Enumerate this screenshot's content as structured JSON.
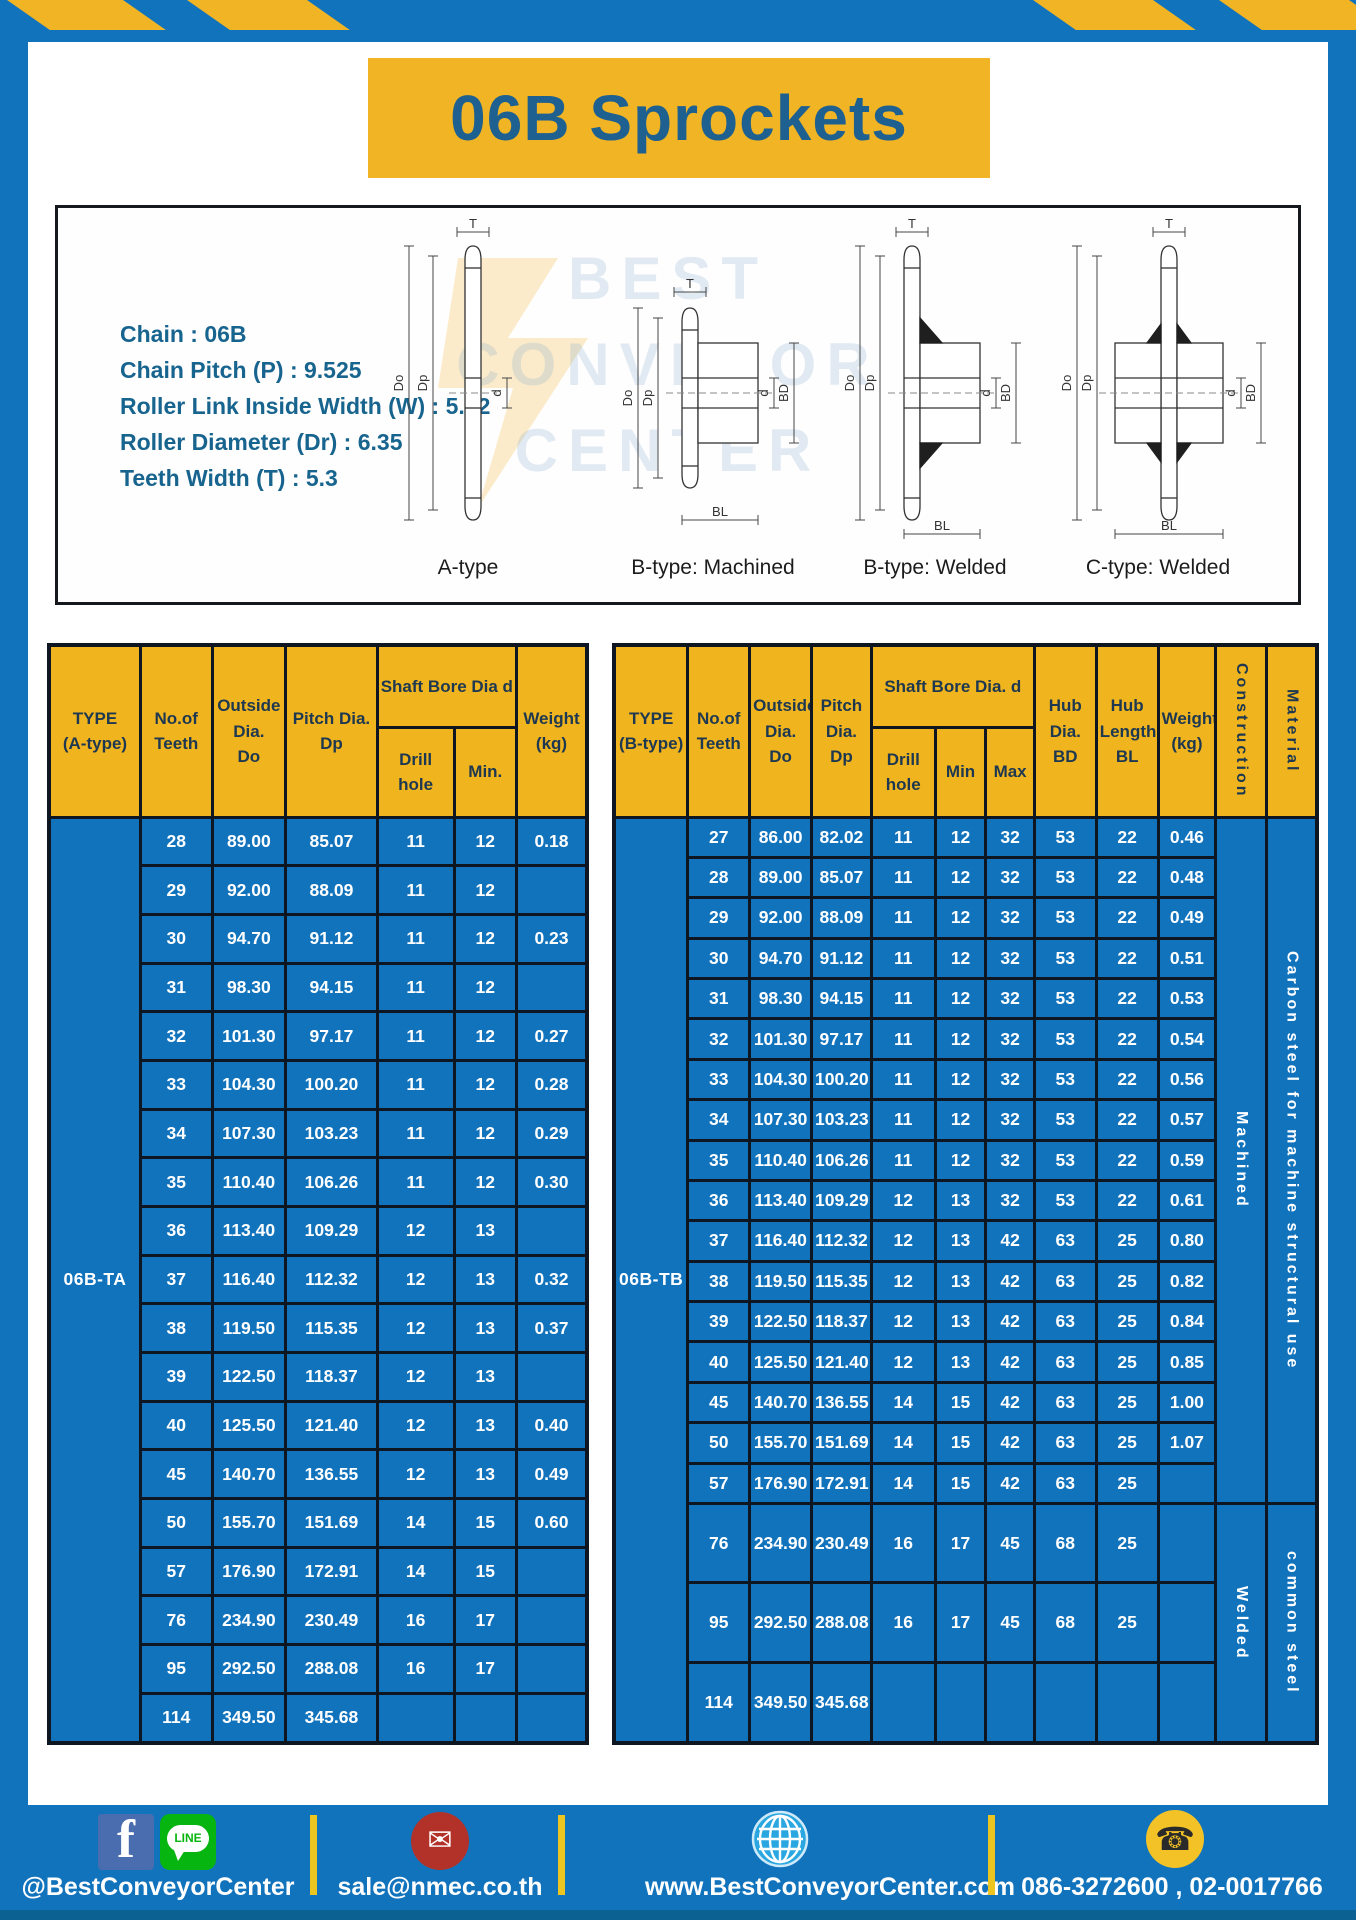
{
  "page": {
    "title_banner": "06B Sprockets"
  },
  "colors": {
    "blue": "#1273bd",
    "yellow": "#f0b425",
    "header_text": "#1d3850",
    "title_text": "#1e6090",
    "cell_text": "#ffffff",
    "footer_strip": "#0b6292"
  },
  "specs": {
    "lines": [
      "Chain : 06B",
      "Chain Pitch (P) : 9.525",
      "Roller Link Inside Width (W) : 5.72",
      "Roller Diameter (Dr) : 6.35",
      "Teeth Width (T) : 5.3"
    ]
  },
  "watermark": {
    "line1": "BEST",
    "line2": "CONVEYOR",
    "line3": "CENTER"
  },
  "drawings": [
    {
      "label": "A-type",
      "variant": "plate",
      "dims": [
        "T",
        "Do",
        "Dp",
        "d"
      ]
    },
    {
      "label": "B-type: Machined",
      "variant": "hubM",
      "dims": [
        "T",
        "Do",
        "Dp",
        "d",
        "BD",
        "BL"
      ]
    },
    {
      "label": "B-type: Welded",
      "variant": "hubW",
      "dims": [
        "T",
        "Do",
        "Dp",
        "d",
        "BD",
        "BL"
      ]
    },
    {
      "label": "C-type: Welded",
      "variant": "hubC",
      "dims": [
        "T",
        "Do",
        "Dp",
        "d",
        "BD",
        "BL"
      ]
    }
  ],
  "table_a": {
    "type_label": "06B-TA",
    "headers": {
      "type": "TYPE\n(A-type)",
      "teeth": "No.of\nTeeth",
      "outside": "Outside\nDia.\nDo",
      "pitch": "Pitch Dia.\nDp",
      "bore_span": "Shaft Bore Dia d",
      "drill": "Drill hole",
      "min": "Min.",
      "weight": "Weight\n(kg)"
    },
    "rows": [
      [
        "28",
        "89.00",
        "85.07",
        "11",
        "12",
        "0.18"
      ],
      [
        "29",
        "92.00",
        "88.09",
        "11",
        "12",
        ""
      ],
      [
        "30",
        "94.70",
        "91.12",
        "11",
        "12",
        "0.23"
      ],
      [
        "31",
        "98.30",
        "94.15",
        "11",
        "12",
        ""
      ],
      [
        "32",
        "101.30",
        "97.17",
        "11",
        "12",
        "0.27"
      ],
      [
        "33",
        "104.30",
        "100.20",
        "11",
        "12",
        "0.28"
      ],
      [
        "34",
        "107.30",
        "103.23",
        "11",
        "12",
        "0.29"
      ],
      [
        "35",
        "110.40",
        "106.26",
        "11",
        "12",
        "0.30"
      ],
      [
        "36",
        "113.40",
        "109.29",
        "12",
        "13",
        ""
      ],
      [
        "37",
        "116.40",
        "112.32",
        "12",
        "13",
        "0.32"
      ],
      [
        "38",
        "119.50",
        "115.35",
        "12",
        "13",
        "0.37"
      ],
      [
        "39",
        "122.50",
        "118.37",
        "12",
        "13",
        ""
      ],
      [
        "40",
        "125.50",
        "121.40",
        "12",
        "13",
        "0.40"
      ],
      [
        "45",
        "140.70",
        "136.55",
        "12",
        "13",
        "0.49"
      ],
      [
        "50",
        "155.70",
        "151.69",
        "14",
        "15",
        "0.60"
      ],
      [
        "57",
        "176.90",
        "172.91",
        "14",
        "15",
        ""
      ],
      [
        "76",
        "234.90",
        "230.49",
        "16",
        "17",
        ""
      ],
      [
        "95",
        "292.50",
        "288.08",
        "16",
        "17",
        ""
      ],
      [
        "114",
        "349.50",
        "345.68",
        "",
        "",
        ""
      ]
    ]
  },
  "table_b": {
    "type_label": "06B-TB",
    "headers": {
      "type": "TYPE\n(B-type)",
      "teeth": "No.of\nTeeth",
      "outside": "Outside\nDia.\nDo",
      "pitch": "Pitch\nDia.\nDp",
      "bore_span": "Shaft Bore Dia. d",
      "drill": "Drill hole",
      "min": "Min",
      "max": "Max",
      "hub_dia": "Hub\nDia.\nBD",
      "hub_len": "Hub\nLength\nBL",
      "weight": "Weight\n(kg)",
      "construction": "Construction",
      "material": "Material"
    },
    "construction_groups": [
      {
        "label": "Machined",
        "span": 17
      },
      {
        "label": "Welded",
        "span": 3
      }
    ],
    "material_groups": [
      {
        "label": "Carbon steel for machine structural use",
        "span": 17
      },
      {
        "label": "common steel",
        "span": 3
      }
    ],
    "rows": [
      [
        "27",
        "86.00",
        "82.02",
        "11",
        "12",
        "32",
        "53",
        "22",
        "0.46"
      ],
      [
        "28",
        "89.00",
        "85.07",
        "11",
        "12",
        "32",
        "53",
        "22",
        "0.48"
      ],
      [
        "29",
        "92.00",
        "88.09",
        "11",
        "12",
        "32",
        "53",
        "22",
        "0.49"
      ],
      [
        "30",
        "94.70",
        "91.12",
        "11",
        "12",
        "32",
        "53",
        "22",
        "0.51"
      ],
      [
        "31",
        "98.30",
        "94.15",
        "11",
        "12",
        "32",
        "53",
        "22",
        "0.53"
      ],
      [
        "32",
        "101.30",
        "97.17",
        "11",
        "12",
        "32",
        "53",
        "22",
        "0.54"
      ],
      [
        "33",
        "104.30",
        "100.20",
        "11",
        "12",
        "32",
        "53",
        "22",
        "0.56"
      ],
      [
        "34",
        "107.30",
        "103.23",
        "11",
        "12",
        "32",
        "53",
        "22",
        "0.57"
      ],
      [
        "35",
        "110.40",
        "106.26",
        "11",
        "12",
        "32",
        "53",
        "22",
        "0.59"
      ],
      [
        "36",
        "113.40",
        "109.29",
        "12",
        "13",
        "32",
        "53",
        "22",
        "0.61"
      ],
      [
        "37",
        "116.40",
        "112.32",
        "12",
        "13",
        "42",
        "63",
        "25",
        "0.80"
      ],
      [
        "38",
        "119.50",
        "115.35",
        "12",
        "13",
        "42",
        "63",
        "25",
        "0.82"
      ],
      [
        "39",
        "122.50",
        "118.37",
        "12",
        "13",
        "42",
        "63",
        "25",
        "0.84"
      ],
      [
        "40",
        "125.50",
        "121.40",
        "12",
        "13",
        "42",
        "63",
        "25",
        "0.85"
      ],
      [
        "45",
        "140.70",
        "136.55",
        "14",
        "15",
        "42",
        "63",
        "25",
        "1.00"
      ],
      [
        "50",
        "155.70",
        "151.69",
        "14",
        "15",
        "42",
        "63",
        "25",
        "1.07"
      ],
      [
        "57",
        "176.90",
        "172.91",
        "14",
        "15",
        "42",
        "63",
        "25",
        ""
      ],
      [
        "76",
        "234.90",
        "230.49",
        "16",
        "17",
        "45",
        "68",
        "25",
        ""
      ],
      [
        "95",
        "292.50",
        "288.08",
        "16",
        "17",
        "45",
        "68",
        "25",
        ""
      ],
      [
        "114",
        "349.50",
        "345.68",
        "",
        "",
        "",
        "",
        "",
        ""
      ]
    ]
  },
  "footer": {
    "social": {
      "label": "@BestConveyorCenter",
      "icons": [
        "facebook-icon",
        "line-icon"
      ],
      "line_text": "LINE",
      "fb_letter": "f"
    },
    "email": {
      "label": "sale@nmec.co.th",
      "icon": "envelope-icon",
      "glyph": "✉"
    },
    "website": {
      "label": "www.BestConveyorCenter.com",
      "icon": "globe-icon"
    },
    "phone": {
      "label": "086-3272600 , 02-0017766",
      "icon": "phone-icon",
      "glyph": "☎"
    }
  }
}
